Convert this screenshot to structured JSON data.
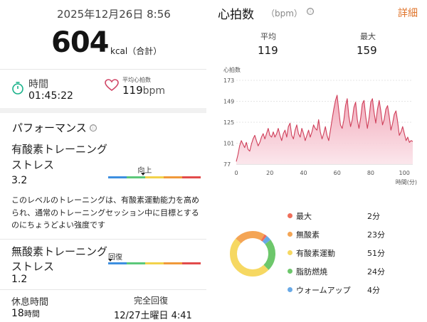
{
  "summary": {
    "datetime": "2025年12月26日 8:56",
    "calories": "604",
    "calories_unit": "kcal（合計）",
    "time_label": "時間",
    "time_value": "01:45:22",
    "avg_hr_label": "平均心拍数",
    "avg_hr_value": "119",
    "avg_hr_unit": "bpm",
    "icons": [
      "stopwatch-icon",
      "heart-icon"
    ],
    "accent_color": "#19b28a"
  },
  "performance": {
    "title": "パフォーマンス",
    "info_icon": "ⓘ",
    "aerobic_label_line1": "有酸素トレーニング",
    "aerobic_label_line2": "ストレス",
    "aerobic_value": "3.2",
    "aerobic_level": "向上",
    "aerobic_level_position": 0.38,
    "description": "このレベルのトレーニングは、有酸素運動能力を高められ、通常のトレーニングセッション中に目標とするのにちょうどよい強度です",
    "anaerobic_label_line1": "無酸素トレーニング",
    "anaerobic_label_line2": "ストレス",
    "anaerobic_value": "1.2",
    "anaerobic_level": "回復",
    "anaerobic_level_position": 0.02,
    "bar_colors": [
      "#3d8fe0",
      "#5cc87a",
      "#f2d24a",
      "#f0993a",
      "#e24b4b"
    ]
  },
  "rest": {
    "label": "休息時間",
    "value": "18",
    "unit": "時間",
    "recovery_label": "完全回復",
    "recovery_value": "12/27土曜日 4:41"
  },
  "heart_rate": {
    "title": "心拍数",
    "unit": "（bpm）",
    "info_icon": "ⓘ",
    "detail_label": "詳細",
    "avg_label": "平均",
    "avg_value": "119",
    "max_label": "最大",
    "max_value": "159",
    "line_color": "#cf3f5a"
  },
  "chart_data": [
    {
      "type": "area",
      "ylabel": "心拍数",
      "xlabel": "時間(分)",
      "y_ticks": [
        "173",
        "149",
        "125",
        "101",
        "77"
      ],
      "x_ticks": [
        "0",
        "20",
        "40",
        "60",
        "80",
        "100"
      ],
      "ylim": [
        77,
        173
      ],
      "xlim": [
        0,
        105
      ],
      "grid": true,
      "x": [
        0,
        1,
        2,
        3,
        4,
        5,
        6,
        7,
        8,
        9,
        10,
        11,
        12,
        13,
        14,
        15,
        16,
        17,
        18,
        19,
        20,
        21,
        22,
        23,
        24,
        25,
        26,
        27,
        28,
        29,
        30,
        31,
        32,
        33,
        34,
        35,
        36,
        37,
        38,
        39,
        40,
        41,
        42,
        43,
        44,
        45,
        46,
        47,
        48,
        49,
        50,
        51,
        52,
        53,
        54,
        55,
        56,
        57,
        58,
        59,
        60,
        61,
        62,
        63,
        64,
        65,
        66,
        67,
        68,
        69,
        70,
        71,
        72,
        73,
        74,
        75,
        76,
        77,
        78,
        79,
        80,
        81,
        82,
        83,
        84,
        85,
        86,
        87,
        88,
        89,
        90,
        91,
        92,
        93,
        94,
        95,
        96,
        97,
        98,
        99,
        100,
        101,
        102,
        103,
        104,
        105
      ],
      "y": [
        80,
        88,
        98,
        104,
        100,
        96,
        102,
        94,
        92,
        100,
        106,
        110,
        104,
        98,
        102,
        108,
        112,
        106,
        112,
        118,
        110,
        108,
        114,
        108,
        112,
        118,
        110,
        104,
        112,
        116,
        108,
        120,
        124,
        110,
        106,
        116,
        122,
        112,
        108,
        118,
        112,
        104,
        110,
        116,
        108,
        114,
        122,
        118,
        116,
        128,
        114,
        106,
        112,
        120,
        110,
        104,
        116,
        128,
        140,
        150,
        156,
        138,
        122,
        118,
        128,
        144,
        152,
        132,
        120,
        128,
        142,
        148,
        128,
        118,
        130,
        146,
        150,
        132,
        118,
        130,
        148,
        152,
        136,
        124,
        140,
        150,
        138,
        122,
        128,
        140,
        144,
        132,
        116,
        124,
        134,
        138,
        126,
        110,
        114,
        120,
        112,
        104,
        108,
        102,
        104,
        103
      ],
      "fill_color": "#f6c4cf"
    },
    {
      "type": "pie",
      "categories": [
        "最大",
        "無酸素",
        "有酸素運動",
        "脂肪燃焼",
        "ウォームアップ"
      ],
      "values_label": [
        "2分",
        "23分",
        "51分",
        "24分",
        "4分"
      ],
      "values": [
        2,
        23,
        51,
        24,
        4
      ],
      "colors": [
        "#ef6e5a",
        "#f4a555",
        "#f6d862",
        "#6dc76b",
        "#69a9e6"
      ]
    }
  ]
}
